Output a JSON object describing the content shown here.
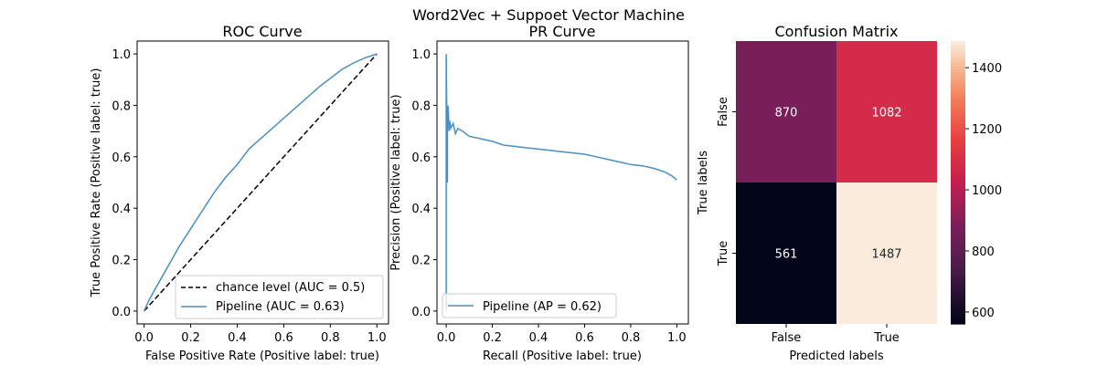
{
  "suptitle": "Word2Vec + Suppoet Vector Machine",
  "colors": {
    "pipeline": "#4c8ebf",
    "chance": "#000000",
    "axis": "#000000"
  },
  "chart_data": [
    {
      "type": "line",
      "title": "ROC Curve",
      "xlabel": "False Positive Rate (Positive label: true)",
      "ylabel": "True Positive Rate (Positive label: true)",
      "xlim": [
        -0.03,
        1.05
      ],
      "ylim": [
        -0.05,
        1.05
      ],
      "xticks": [
        0.0,
        0.2,
        0.4,
        0.6,
        0.8,
        1.0
      ],
      "yticks": [
        0.0,
        0.2,
        0.4,
        0.6,
        0.8,
        1.0
      ],
      "tick_labels": [
        "0.0",
        "0.2",
        "0.4",
        "0.6",
        "0.8",
        "1.0"
      ],
      "legend_position": "lower-right",
      "series": [
        {
          "name": "chance level (AUC = 0.5)",
          "style": "dashed",
          "color": "#000000",
          "x": [
            0,
            1
          ],
          "y": [
            0,
            1
          ]
        },
        {
          "name": "Pipeline (AUC = 0.63)",
          "style": "solid",
          "color": "#4c8ebf",
          "x": [
            0,
            0.02,
            0.05,
            0.1,
            0.15,
            0.2,
            0.25,
            0.3,
            0.35,
            0.4,
            0.45,
            0.5,
            0.55,
            0.6,
            0.65,
            0.7,
            0.75,
            0.8,
            0.85,
            0.9,
            0.95,
            1.0
          ],
          "y": [
            0,
            0.04,
            0.09,
            0.17,
            0.25,
            0.32,
            0.39,
            0.46,
            0.52,
            0.57,
            0.63,
            0.67,
            0.71,
            0.75,
            0.79,
            0.83,
            0.87,
            0.905,
            0.94,
            0.965,
            0.985,
            1.0
          ]
        }
      ]
    },
    {
      "type": "line",
      "title": "PR Curve",
      "xlabel": "Recall (Positive label: true)",
      "ylabel": "Precision (Positive label: true)",
      "xlim": [
        -0.04,
        1.05
      ],
      "ylim": [
        -0.05,
        1.05
      ],
      "xticks": [
        0.0,
        0.2,
        0.4,
        0.6,
        0.8,
        1.0
      ],
      "yticks": [
        0.0,
        0.2,
        0.4,
        0.6,
        0.8,
        1.0
      ],
      "tick_labels": [
        "0.0",
        "0.2",
        "0.4",
        "0.6",
        "0.8",
        "1.0"
      ],
      "legend_position": "lower-left",
      "series": [
        {
          "name": "Pipeline (AP = 0.62)",
          "style": "solid",
          "color": "#4c8ebf",
          "x": [
            0.0,
            0.0,
            0.005,
            0.005,
            0.007,
            0.01,
            0.012,
            0.015,
            0.02,
            0.03,
            0.04,
            0.05,
            0.07,
            0.1,
            0.15,
            0.2,
            0.25,
            0.3,
            0.35,
            0.4,
            0.45,
            0.5,
            0.55,
            0.6,
            0.65,
            0.7,
            0.75,
            0.8,
            0.85,
            0.9,
            0.95,
            0.98,
            1.0
          ],
          "y": [
            0.0,
            1.0,
            0.5,
            0.72,
            0.8,
            0.77,
            0.7,
            0.74,
            0.71,
            0.73,
            0.69,
            0.71,
            0.7,
            0.68,
            0.67,
            0.66,
            0.645,
            0.64,
            0.635,
            0.63,
            0.625,
            0.62,
            0.615,
            0.61,
            0.6,
            0.59,
            0.58,
            0.57,
            0.565,
            0.555,
            0.54,
            0.525,
            0.51
          ]
        }
      ]
    },
    {
      "type": "heatmap",
      "title": "Confusion Matrix",
      "xlabel": "Predicted labels",
      "ylabel": "True labels",
      "x_categories": [
        "False",
        "True"
      ],
      "y_categories": [
        "False",
        "True"
      ],
      "values": [
        [
          870,
          1082
        ],
        [
          561,
          1487
        ]
      ],
      "colorbar_range": [
        561,
        1487
      ],
      "colorbar_ticks": [
        600,
        800,
        1000,
        1200,
        1400
      ]
    }
  ]
}
